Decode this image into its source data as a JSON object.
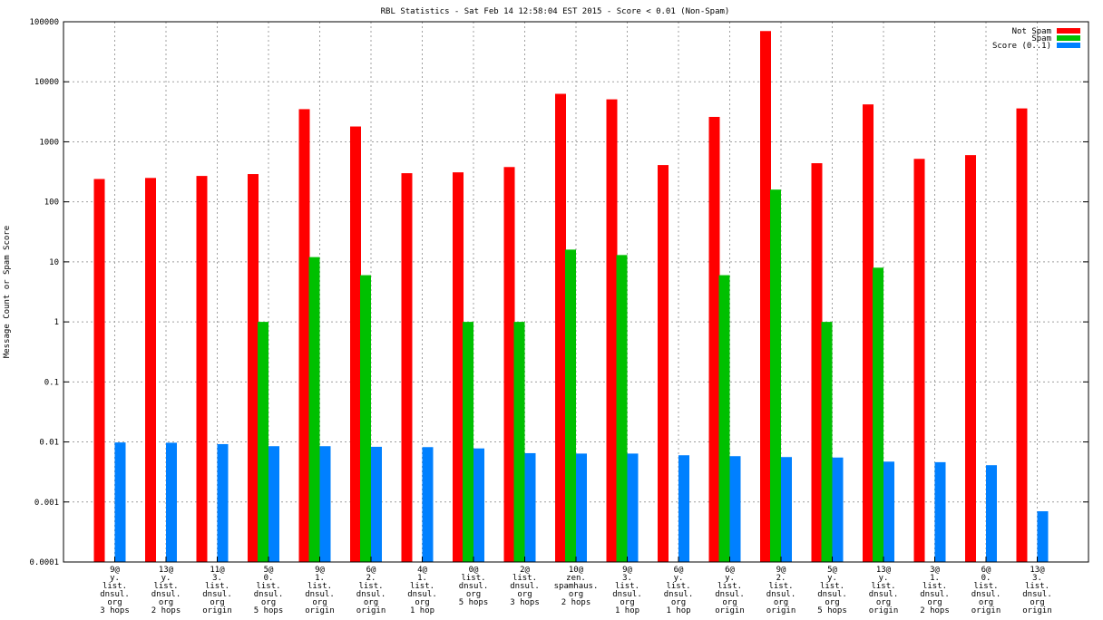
{
  "chart_data": {
    "type": "bar",
    "title": "RBL Statistics - Sat Feb 14 12:58:04 EST 2015 - Score < 0.01 (Non-Spam)",
    "xlabel": "",
    "ylabel": "Message Count or Spam Score",
    "yscale": "log",
    "ylim": [
      0.0001,
      100000
    ],
    "yticks": [
      0.0001,
      0.001,
      0.01,
      0.1,
      1,
      10,
      100,
      1000,
      10000,
      100000
    ],
    "ytick_labels": [
      "0.0001",
      "0.001",
      "0.01",
      "0.1",
      "1",
      "10",
      "100",
      "1000",
      "10000",
      "100000"
    ],
    "grid": true,
    "legend_position": "top-right",
    "categories": [
      [
        "9@",
        "y.",
        "list.",
        "dnsul.",
        "org",
        "3 hops"
      ],
      [
        "13@",
        "y.",
        "list.",
        "dnsul.",
        "org",
        "2 hops"
      ],
      [
        "11@",
        "3.",
        "list.",
        "dnsul.",
        "org",
        "origin"
      ],
      [
        "5@",
        "0.",
        "list.",
        "dnsul.",
        "org",
        "5 hops"
      ],
      [
        "9@",
        "1.",
        "list.",
        "dnsul.",
        "org",
        "origin"
      ],
      [
        "6@",
        "2.",
        "list.",
        "dnsul.",
        "org",
        "origin"
      ],
      [
        "4@",
        "1.",
        "list.",
        "dnsul.",
        "org",
        "1 hop"
      ],
      [
        "0@",
        "list.",
        "dnsul.",
        "org",
        "5 hops"
      ],
      [
        "2@",
        "list.",
        "dnsul.",
        "org",
        "3 hops"
      ],
      [
        "10@",
        "zen.",
        "spamhaus.",
        "org",
        "2 hops"
      ],
      [
        "9@",
        "3.",
        "list.",
        "dnsul.",
        "org",
        "1 hop"
      ],
      [
        "6@",
        "y.",
        "list.",
        "dnsul.",
        "org",
        "1 hop"
      ],
      [
        "6@",
        "y.",
        "list.",
        "dnsul.",
        "org",
        "origin"
      ],
      [
        "9@",
        "2.",
        "list.",
        "dnsul.",
        "org",
        "origin"
      ],
      [
        "5@",
        "y.",
        "list.",
        "dnsul.",
        "org",
        "5 hops"
      ],
      [
        "13@",
        "y.",
        "list.",
        "dnsul.",
        "org",
        "origin"
      ],
      [
        "3@",
        "1.",
        "list.",
        "dnsul.",
        "org",
        "2 hops"
      ],
      [
        "6@",
        "0.",
        "list.",
        "dnsul.",
        "org",
        "origin"
      ],
      [
        "13@",
        "3.",
        "list.",
        "dnsul.",
        "org",
        "origin"
      ]
    ],
    "series": [
      {
        "name": "Not Spam",
        "color": "#ff0000",
        "values": [
          240,
          250,
          270,
          290,
          3500,
          1800,
          300,
          310,
          380,
          6300,
          5100,
          410,
          2600,
          70000,
          440,
          4200,
          520,
          600,
          3600
        ]
      },
      {
        "name": "Spam",
        "color": "#00c000",
        "values": [
          null,
          null,
          null,
          1,
          12,
          6,
          null,
          1,
          1,
          16,
          13,
          null,
          6,
          160,
          1,
          8,
          null,
          null,
          null
        ]
      },
      {
        "name": "Score (0..1)",
        "color": "#0080ff",
        "values": [
          0.0098,
          0.0097,
          0.0092,
          0.0085,
          0.0085,
          0.0083,
          0.0082,
          0.0078,
          0.0065,
          0.0064,
          0.0064,
          0.006,
          0.0058,
          0.0056,
          0.0055,
          0.0047,
          0.0046,
          0.0041,
          0.0007
        ]
      }
    ]
  }
}
